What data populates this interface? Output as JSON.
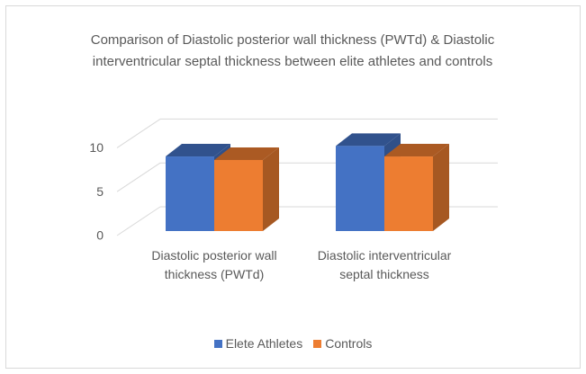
{
  "chart_data": {
    "type": "bar3d",
    "title": "Comparison of Diastolic posterior wall thickness (PWTd) & Diastolic interventricular septal thickness between elite athletes and controls",
    "categories": [
      "Diastolic posterior wall thickness (PWTd)",
      "Diastolic interventricular septal thickness"
    ],
    "series": [
      {
        "name": "Elete Athletes",
        "color": "#4472c4",
        "values": [
          8.5,
          9.7
        ]
      },
      {
        "name": "Controls",
        "color": "#ed7d31",
        "values": [
          8.1,
          8.5
        ]
      }
    ],
    "ylim": [
      0,
      10
    ],
    "yticks": [
      0,
      5,
      10
    ],
    "grid": true,
    "legend": "bottom"
  }
}
